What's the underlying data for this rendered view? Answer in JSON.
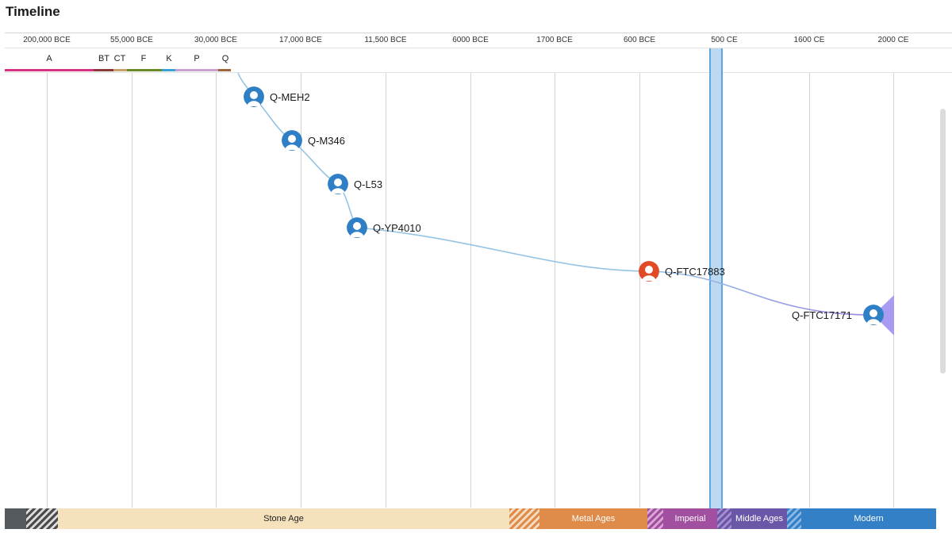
{
  "title": "Timeline",
  "ticks": [
    "200,000 BCE",
    "55,000 BCE",
    "30,000 BCE",
    "17,000 BCE",
    "11,500 BCE",
    "6000 BCE",
    "1700 BCE",
    "600 BCE",
    "500 CE",
    "1600 CE",
    "2000 CE"
  ],
  "haplogroups": [
    {
      "label": "A",
      "color": "#d63384"
    },
    {
      "label": "BT",
      "color": "#8b3a3a"
    },
    {
      "label": "CT",
      "color": "#c9a26b"
    },
    {
      "label": "F",
      "color": "#6a8a2a"
    },
    {
      "label": "K",
      "color": "#3aa0d8"
    },
    {
      "label": "P",
      "color": "#c9a0d0"
    },
    {
      "label": "Q",
      "color": "#a0663a"
    }
  ],
  "nodes": [
    {
      "label": "Q-MEH2",
      "color": "#2f7fc6"
    },
    {
      "label": "Q-M346",
      "color": "#2f7fc6"
    },
    {
      "label": "Q-L53",
      "color": "#2f7fc6"
    },
    {
      "label": "Q-YP4010",
      "color": "#2f7fc6"
    },
    {
      "label": "Q-FTC17883",
      "color": "#e04a25"
    },
    {
      "label": "Q-FTC17171",
      "color": "#2f7fc6"
    }
  ],
  "eras": {
    "stone_age": "Stone Age",
    "metal_ages": "Metal Ages",
    "imperial": "Imperial",
    "middle_ages": "Middle Ages",
    "modern": "Modern"
  },
  "colors": {
    "stone": "#f5e2bd",
    "metal": "#df8b4a",
    "imperial": "#a14f9f",
    "middle": "#6a57a8",
    "modern": "#3380c6",
    "branch_line": "#95c3e3",
    "branch_line_end": "#9a86e6",
    "fan": "#a79cf2"
  }
}
